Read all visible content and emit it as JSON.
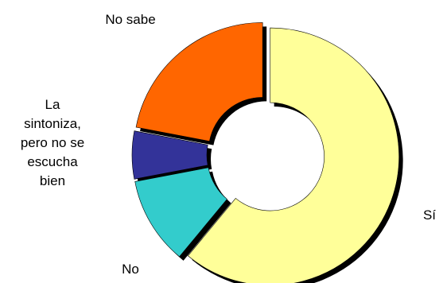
{
  "chart_data": {
    "type": "pie",
    "variant": "donut",
    "exploded": true,
    "shadow": true,
    "categories": [
      "Sí",
      "No",
      "La sintoniza, pero no se escucha bien",
      "No sabe"
    ],
    "values": [
      61,
      11,
      6,
      22
    ],
    "value_unit": "%",
    "colors": [
      "#FFFF99",
      "#33CCCC",
      "#333399",
      "#FF6600"
    ],
    "labels": [
      {
        "lines": [
          "Sí"
        ]
      },
      {
        "lines": [
          "No"
        ]
      },
      {
        "lines": [
          "La",
          "sintoniza,",
          "pero no se",
          "escucha",
          "bien"
        ]
      },
      {
        "lines": [
          "No sabe"
        ]
      }
    ],
    "title": "",
    "legend": "none"
  }
}
